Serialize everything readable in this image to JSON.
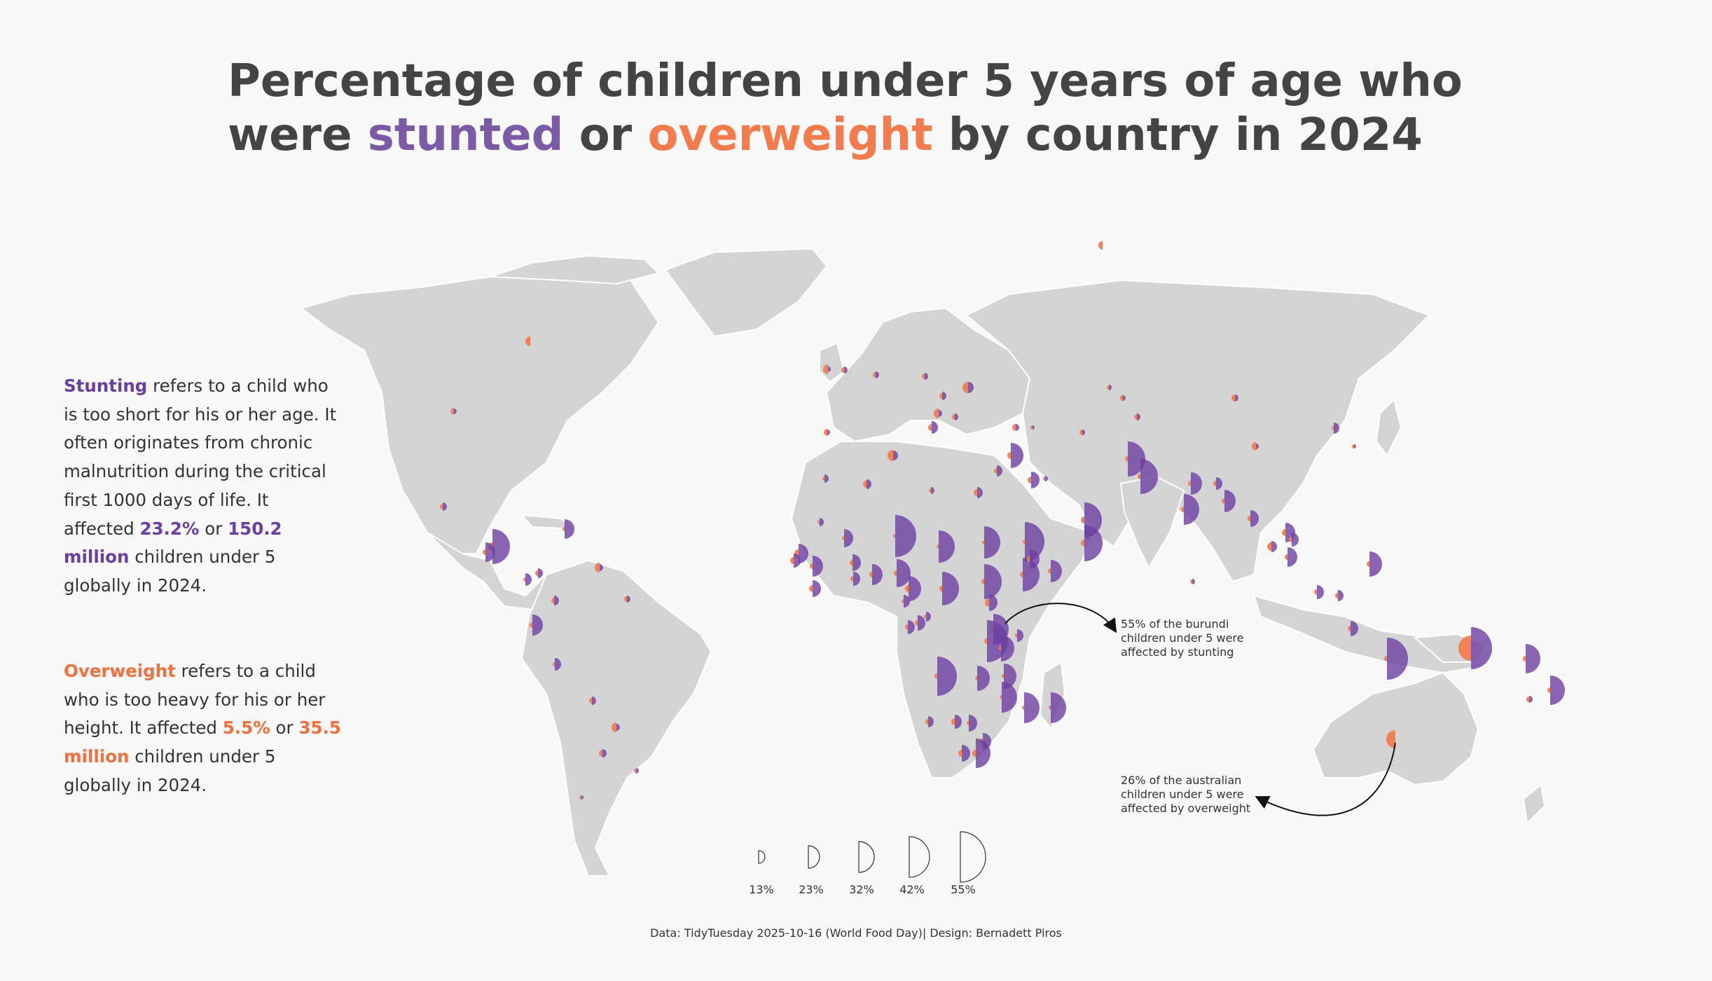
{
  "title": {
    "line1": "Percentage of children under 5 years of age who",
    "were": "were",
    "stunted": "stunted",
    "or": "or",
    "overweight": "overweight",
    "rest": "by country in 2024"
  },
  "colors": {
    "stunting": "#6b3fa0",
    "overweight": "#f47c4c",
    "land": "#d4d4d4",
    "background": "#f8f8f8"
  },
  "stunting_text": {
    "term": "Stunting",
    "body": " refers to a child who is too short for his or her age. It often originates from chronic malnutrition during the critical first 1000 days of life. It affected ",
    "pct": "23.2%",
    "or": " or ",
    "count": "150.2 million",
    "tail": " children under 5 globally in 2024."
  },
  "overweight_text": {
    "term": "Overweight",
    "body": " refers to a child who is too heavy for his or her height. It affected ",
    "pct": "5.5%",
    "or": " or ",
    "count": "35.5 million",
    "tail": " children under 5 globally in 2024."
  },
  "annotations": {
    "burundi": "55% of the burundi children under 5 were affected by stunting",
    "australia": "26% of the australian children under 5 were affected by overweight"
  },
  "caption": "Data: TidyTuesday 2025-10-16 (World Food Day)| Design: Bernadett Piros",
  "chart_data": {
    "type": "map",
    "encoding": "left half-circle = overweight %, right half-circle = stunting %, radius scaled by percentage",
    "size_legend": [
      "13%",
      "23%",
      "32%",
      "42%",
      "55%"
    ],
    "highlights": [
      {
        "country": "Burundi",
        "stunting": 55
      },
      {
        "country": "Australia",
        "overweight": 26
      }
    ]
  }
}
